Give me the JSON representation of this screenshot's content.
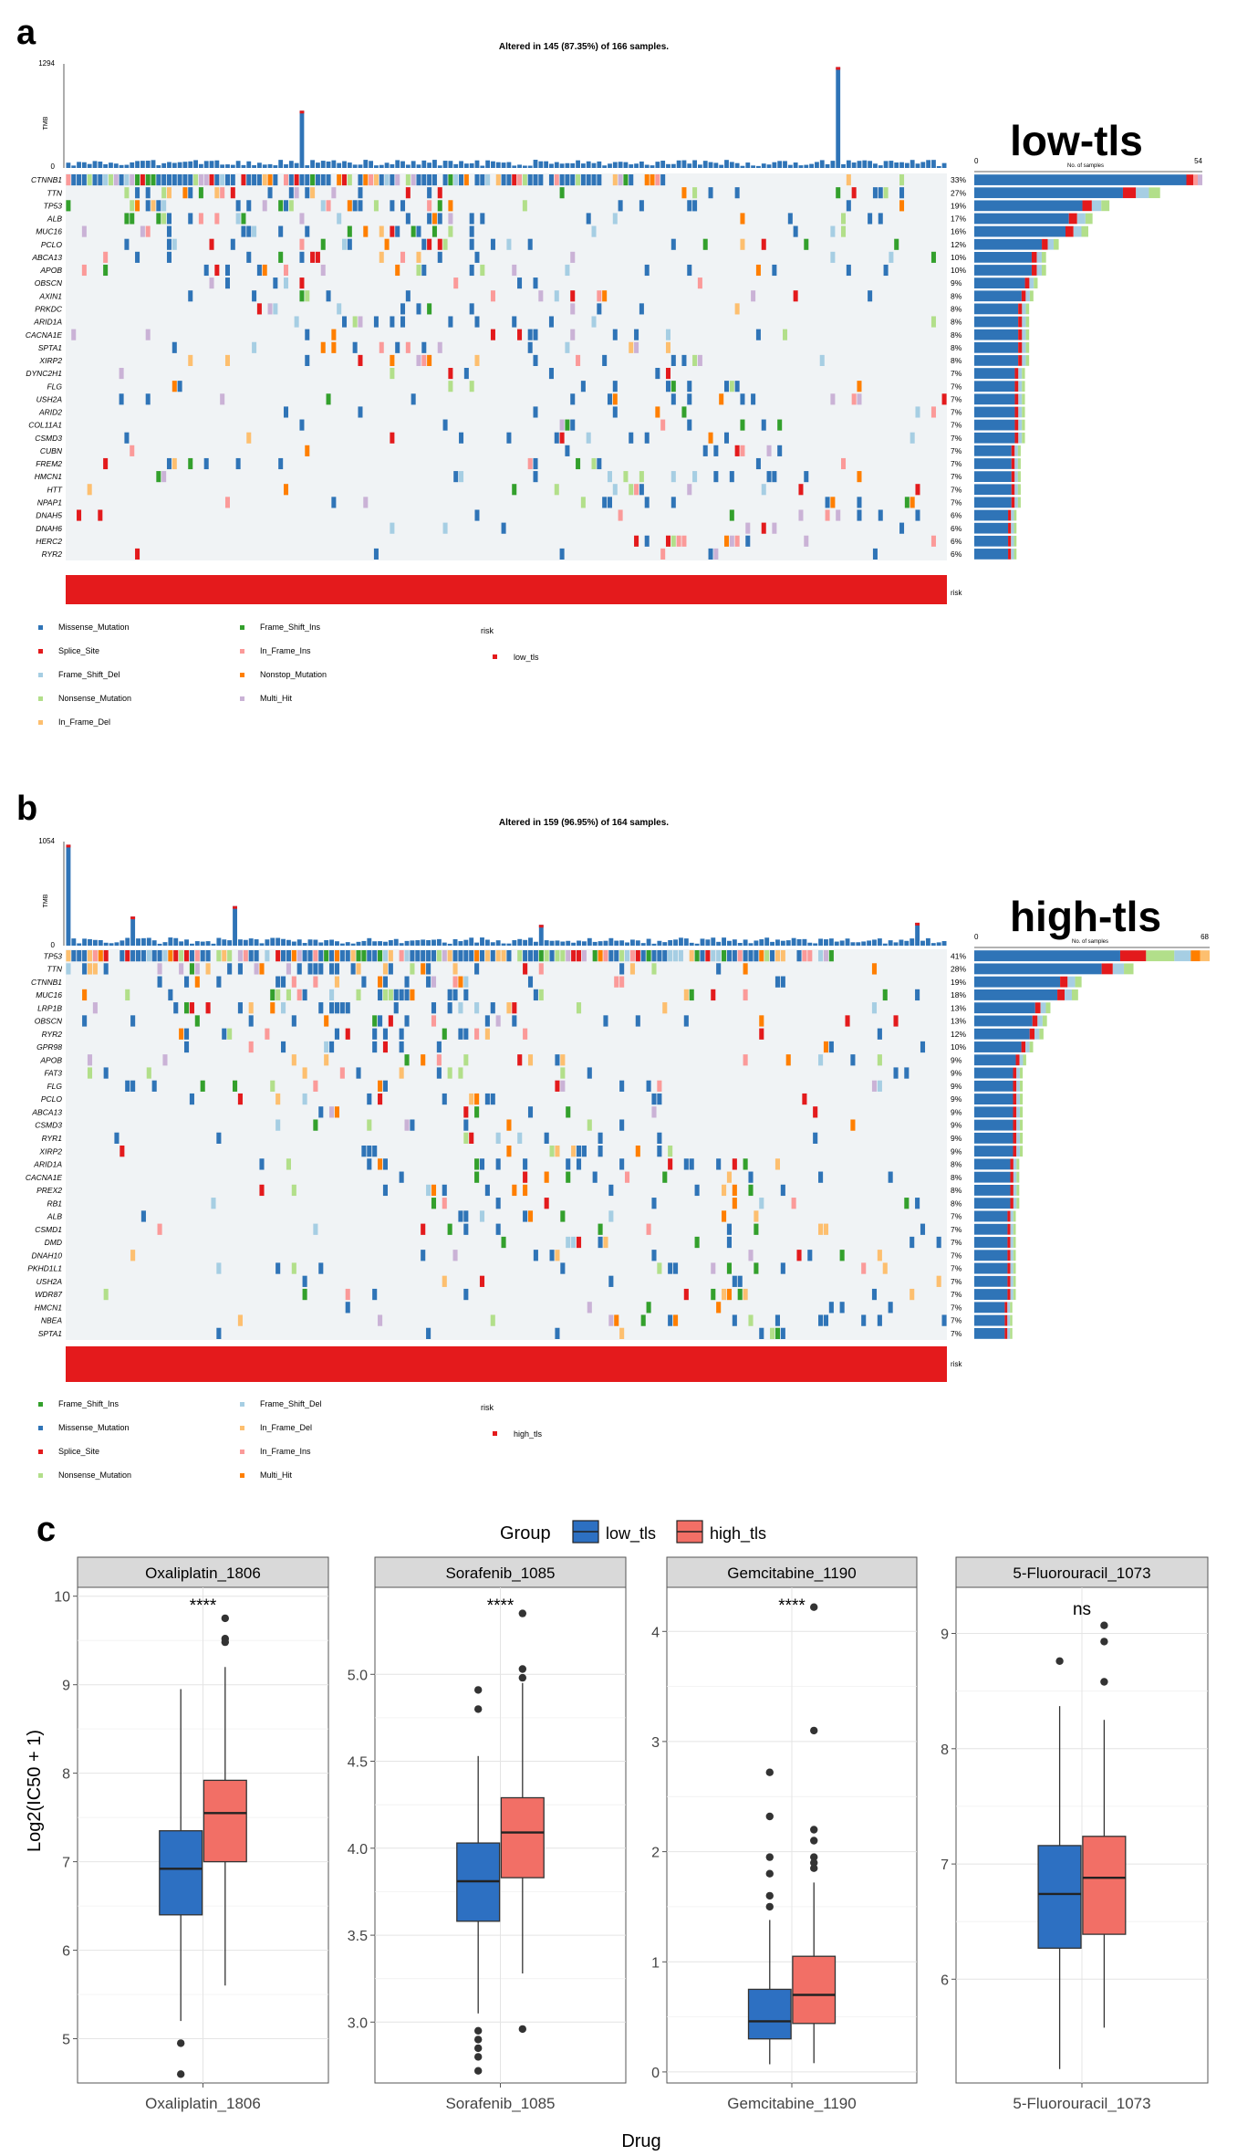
{
  "colors": {
    "missense": "#2f74b7",
    "splice": "#e31a1c",
    "frameshift_del": "#a6cee3",
    "nonsense": "#b2df8a",
    "inframe_del": "#fdbf6f",
    "frameshift_ins": "#33a02c",
    "inframe_ins": "#fb9a99",
    "nonstop": "#ff7f00",
    "multi_hit": "#cab2d6",
    "risk": "#e41a1c",
    "box_low": "#2d70c2",
    "box_high": "#f26f66",
    "grid_bg": "#f0f3f5"
  },
  "panel_a": {
    "letter": "a",
    "title": "Altered in 145 (87.35%) of 166 samples.",
    "group_label": "low-tls",
    "tmb_label": "TMB",
    "tmb_max": "1294",
    "tmb_min": "0",
    "bar_axis_min": "0",
    "bar_axis_max": "54",
    "bar_axis_label": "No. of samples",
    "risk_label": "risk",
    "risk_legend_title": "risk",
    "risk_legend_value": "low_tls",
    "legend": [
      {
        "label": "Missense_Mutation",
        "color": "missense"
      },
      {
        "label": "Splice_Site",
        "color": "splice"
      },
      {
        "label": "Frame_Shift_Del",
        "color": "frameshift_del"
      },
      {
        "label": "Nonsense_Mutation",
        "color": "nonsense"
      },
      {
        "label": "In_Frame_Del",
        "color": "inframe_del"
      },
      {
        "label": "Frame_Shift_Ins",
        "color": "frameshift_ins"
      },
      {
        "label": "In_Frame_Ins",
        "color": "inframe_ins"
      },
      {
        "label": "Nonstop_Mutation",
        "color": "nonstop"
      },
      {
        "label": "Multi_Hit",
        "color": "multi_hit"
      }
    ],
    "genes": [
      {
        "gene": "CTNNB1",
        "pct": "33%"
      },
      {
        "gene": "TTN",
        "pct": "27%"
      },
      {
        "gene": "TP53",
        "pct": "19%"
      },
      {
        "gene": "ALB",
        "pct": "17%"
      },
      {
        "gene": "MUC16",
        "pct": "16%"
      },
      {
        "gene": "PCLO",
        "pct": "12%"
      },
      {
        "gene": "ABCA13",
        "pct": "10%"
      },
      {
        "gene": "APOB",
        "pct": "10%"
      },
      {
        "gene": "OBSCN",
        "pct": "9%"
      },
      {
        "gene": "AXIN1",
        "pct": "8%"
      },
      {
        "gene": "PRKDC",
        "pct": "8%"
      },
      {
        "gene": "ARID1A",
        "pct": "8%"
      },
      {
        "gene": "CACNA1E",
        "pct": "8%"
      },
      {
        "gene": "SPTA1",
        "pct": "8%"
      },
      {
        "gene": "XIRP2",
        "pct": "8%"
      },
      {
        "gene": "DYNC2H1",
        "pct": "7%"
      },
      {
        "gene": "FLG",
        "pct": "7%"
      },
      {
        "gene": "USH2A",
        "pct": "7%"
      },
      {
        "gene": "ARID2",
        "pct": "7%"
      },
      {
        "gene": "COL11A1",
        "pct": "7%"
      },
      {
        "gene": "CSMD3",
        "pct": "7%"
      },
      {
        "gene": "CUBN",
        "pct": "7%"
      },
      {
        "gene": "FREM2",
        "pct": "7%"
      },
      {
        "gene": "HMCN1",
        "pct": "7%"
      },
      {
        "gene": "HTT",
        "pct": "7%"
      },
      {
        "gene": "NPAP1",
        "pct": "7%"
      },
      {
        "gene": "DNAH5",
        "pct": "6%"
      },
      {
        "gene": "DNAH6",
        "pct": "6%"
      },
      {
        "gene": "HERC2",
        "pct": "6%"
      },
      {
        "gene": "RYR2",
        "pct": "6%"
      }
    ]
  },
  "panel_b": {
    "letter": "b",
    "title": "Altered in 159 (96.95%) of 164 samples.",
    "group_label": "high-tls",
    "tmb_label": "TMB",
    "tmb_max": "1054",
    "tmb_min": "0",
    "bar_axis_min": "0",
    "bar_axis_max": "68",
    "bar_axis_label": "No. of samples",
    "risk_label": "risk",
    "risk_legend_title": "risk",
    "risk_legend_value": "high_tls",
    "legend": [
      {
        "label": "Frame_Shift_Ins",
        "color": "frameshift_ins"
      },
      {
        "label": "Missense_Mutation",
        "color": "missense"
      },
      {
        "label": "Splice_Site",
        "color": "splice"
      },
      {
        "label": "Nonsense_Mutation",
        "color": "nonsense"
      },
      {
        "label": "Frame_Shift_Del",
        "color": "frameshift_del"
      },
      {
        "label": "In_Frame_Del",
        "color": "inframe_del"
      },
      {
        "label": "In_Frame_Ins",
        "color": "inframe_ins"
      },
      {
        "label": "Multi_Hit",
        "color": "nonstop"
      }
    ],
    "genes": [
      {
        "gene": "TP53",
        "pct": "41%"
      },
      {
        "gene": "TTN",
        "pct": "28%"
      },
      {
        "gene": "CTNNB1",
        "pct": "19%"
      },
      {
        "gene": "MUC16",
        "pct": "18%"
      },
      {
        "gene": "LRP1B",
        "pct": "13%"
      },
      {
        "gene": "OBSCN",
        "pct": "13%"
      },
      {
        "gene": "RYR2",
        "pct": "12%"
      },
      {
        "gene": "GPR98",
        "pct": "10%"
      },
      {
        "gene": "APOB",
        "pct": "9%"
      },
      {
        "gene": "FAT3",
        "pct": "9%"
      },
      {
        "gene": "FLG",
        "pct": "9%"
      },
      {
        "gene": "PCLO",
        "pct": "9%"
      },
      {
        "gene": "ABCA13",
        "pct": "9%"
      },
      {
        "gene": "CSMD3",
        "pct": "9%"
      },
      {
        "gene": "RYR1",
        "pct": "9%"
      },
      {
        "gene": "XIRP2",
        "pct": "9%"
      },
      {
        "gene": "ARID1A",
        "pct": "8%"
      },
      {
        "gene": "CACNA1E",
        "pct": "8%"
      },
      {
        "gene": "PREX2",
        "pct": "8%"
      },
      {
        "gene": "RB1",
        "pct": "8%"
      },
      {
        "gene": "ALB",
        "pct": "7%"
      },
      {
        "gene": "CSMD1",
        "pct": "7%"
      },
      {
        "gene": "DMD",
        "pct": "7%"
      },
      {
        "gene": "DNAH10",
        "pct": "7%"
      },
      {
        "gene": "PKHD1L1",
        "pct": "7%"
      },
      {
        "gene": "USH2A",
        "pct": "7%"
      },
      {
        "gene": "WDR87",
        "pct": "7%"
      },
      {
        "gene": "HMCN1",
        "pct": "7%"
      },
      {
        "gene": "NBEA",
        "pct": "7%"
      },
      {
        "gene": "SPTA1",
        "pct": "7%"
      }
    ]
  },
  "panel_c": {
    "letter": "c",
    "legend_title": "Group",
    "legend_items": [
      "low_tls",
      "high_tls"
    ],
    "y_label": "Log2(IC50 + 1)",
    "x_label": "Drug"
  },
  "chart_data": [
    {
      "type": "bar",
      "title": "Altered in 145 (87.35%) of 166 samples.",
      "ylabel": "No. of samples",
      "xlim": [
        0,
        54
      ],
      "categories": [
        "CTNNB1",
        "TTN",
        "TP53",
        "ALB",
        "MUC16",
        "PCLO",
        "ABCA13",
        "APOB",
        "OBSCN",
        "AXIN1",
        "PRKDC",
        "ARID1A",
        "CACNA1E",
        "SPTA1",
        "XIRP2",
        "DYNC2H1",
        "FLG",
        "USH2A",
        "ARID2",
        "COL11A1",
        "CSMD3",
        "CUBN",
        "FREM2",
        "HMCN1",
        "HTT",
        "NPAP1",
        "DNAH5",
        "DNAH6",
        "HERC2",
        "RYR2"
      ],
      "values": [
        54,
        44,
        32,
        28,
        27,
        20,
        17,
        17,
        15,
        14,
        13,
        13,
        13,
        13,
        13,
        12,
        12,
        12,
        12,
        12,
        12,
        11,
        11,
        11,
        11,
        11,
        10,
        10,
        10,
        10
      ]
    },
    {
      "type": "bar",
      "title": "Altered in 159 (96.95%) of 164 samples.",
      "ylabel": "No. of samples",
      "xlim": [
        0,
        68
      ],
      "categories": [
        "TP53",
        "TTN",
        "CTNNB1",
        "MUC16",
        "LRP1B",
        "OBSCN",
        "RYR2",
        "GPR98",
        "APOB",
        "FAT3",
        "FLG",
        "PCLO",
        "ABCA13",
        "CSMD3",
        "RYR1",
        "XIRP2",
        "ARID1A",
        "CACNA1E",
        "PREX2",
        "RB1",
        "ALB",
        "CSMD1",
        "DMD",
        "DNAH10",
        "PKHD1L1",
        "USH2A",
        "WDR87",
        "HMCN1",
        "NBEA",
        "SPTA1"
      ],
      "values": [
        68,
        46,
        31,
        30,
        22,
        21,
        20,
        17,
        15,
        14,
        14,
        14,
        14,
        14,
        14,
        14,
        13,
        13,
        13,
        13,
        12,
        12,
        12,
        12,
        12,
        12,
        12,
        11,
        11,
        11
      ]
    },
    {
      "type": "box",
      "title": "Oxaliplatin_1806",
      "ylabel": "Log2(IC50 + 1)",
      "xlabel": "Drug",
      "ylim": [
        4.5,
        10.1
      ],
      "yticks": [
        5,
        6,
        7,
        8,
        9,
        10
      ],
      "sig": "****",
      "series": [
        {
          "name": "low_tls",
          "min": 5.2,
          "q1": 6.4,
          "median": 6.92,
          "q3": 7.35,
          "max": 8.95,
          "outliers": [
            4.95,
            4.6
          ]
        },
        {
          "name": "high_tls",
          "min": 5.6,
          "q1": 7.0,
          "median": 7.55,
          "q3": 7.92,
          "max": 9.2,
          "outliers": [
            9.75,
            9.52,
            9.48
          ]
        }
      ]
    },
    {
      "type": "box",
      "title": "Sorafenib_1085",
      "ylabel": "Log2(IC50 + 1)",
      "xlabel": "Drug",
      "ylim": [
        2.65,
        5.5
      ],
      "yticks": [
        3.0,
        3.5,
        4.0,
        4.5,
        5.0
      ],
      "sig": "****",
      "series": [
        {
          "name": "low_tls",
          "min": 3.05,
          "q1": 3.58,
          "median": 3.81,
          "q3": 4.03,
          "max": 4.53,
          "outliers": [
            4.91,
            4.8,
            2.95,
            2.9,
            2.85,
            2.8,
            2.72
          ]
        },
        {
          "name": "high_tls",
          "min": 3.28,
          "q1": 3.83,
          "median": 4.09,
          "q3": 4.29,
          "max": 4.95,
          "outliers": [
            5.35,
            5.03,
            4.98,
            2.96
          ]
        }
      ]
    },
    {
      "type": "box",
      "title": "Gemcitabine_1190",
      "ylabel": "Log2(IC50 + 1)",
      "xlabel": "Drug",
      "ylim": [
        -0.1,
        4.4
      ],
      "yticks": [
        0,
        1,
        2,
        3,
        4
      ],
      "sig": "****",
      "series": [
        {
          "name": "low_tls",
          "min": 0.07,
          "q1": 0.3,
          "median": 0.46,
          "q3": 0.75,
          "max": 1.38,
          "outliers": [
            2.72,
            2.32,
            1.95,
            1.8,
            1.6,
            1.5
          ]
        },
        {
          "name": "high_tls",
          "min": 0.08,
          "q1": 0.44,
          "median": 0.7,
          "q3": 1.05,
          "max": 1.72,
          "outliers": [
            4.22,
            3.1,
            2.2,
            2.1,
            1.95,
            1.9,
            1.85
          ]
        }
      ]
    },
    {
      "type": "box",
      "title": "5-Fluorouracil_1073",
      "ylabel": "Log2(IC50 + 1)",
      "xlabel": "Drug",
      "ylim": [
        5.1,
        9.4
      ],
      "yticks": [
        6,
        7,
        8,
        9
      ],
      "sig": "ns",
      "series": [
        {
          "name": "low_tls",
          "min": 5.22,
          "q1": 6.27,
          "median": 6.74,
          "q3": 7.16,
          "max": 8.37,
          "outliers": [
            8.76
          ]
        },
        {
          "name": "high_tls",
          "min": 5.58,
          "q1": 6.39,
          "median": 6.88,
          "q3": 7.24,
          "max": 8.25,
          "outliers": [
            9.07,
            8.93,
            8.58
          ]
        }
      ]
    }
  ]
}
